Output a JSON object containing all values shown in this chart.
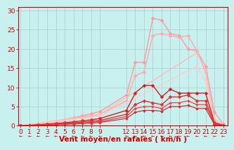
{
  "background_color": "#c8f0ee",
  "grid_color": "#aacccc",
  "xlabel": "Vent moyen/en rafales ( km/h )",
  "ylabel_ticks": [
    0,
    5,
    10,
    15,
    20,
    25,
    30
  ],
  "x_ticks": [
    0,
    1,
    2,
    3,
    4,
    5,
    6,
    7,
    8,
    9,
    12,
    13,
    14,
    15,
    16,
    17,
    18,
    19,
    20,
    21,
    22,
    23
  ],
  "xlim": [
    -0.3,
    23.5
  ],
  "ylim": [
    0,
    31
  ],
  "lines": [
    {
      "x": [
        0,
        1,
        2,
        3,
        4,
        5,
        6,
        7,
        8,
        9,
        12,
        13,
        14,
        15,
        16,
        17,
        18,
        19,
        20,
        21,
        22,
        23
      ],
      "y": [
        0,
        0.3,
        0.6,
        0.9,
        1.2,
        1.6,
        2.1,
        2.6,
        3.1,
        3.7,
        8.0,
        16.5,
        16.5,
        28.0,
        27.5,
        24.0,
        23.5,
        20.0,
        19.5,
        15.5,
        3.5,
        0.5
      ],
      "color": "#ff9999",
      "lw": 1.0,
      "marker": "D",
      "ms": 2.5
    },
    {
      "x": [
        0,
        1,
        2,
        3,
        4,
        5,
        6,
        7,
        8,
        9,
        12,
        13,
        14,
        15,
        16,
        17,
        18,
        19,
        20,
        21,
        22,
        23
      ],
      "y": [
        0,
        0.25,
        0.5,
        0.75,
        1.0,
        1.35,
        1.7,
        2.1,
        2.5,
        3.0,
        6.5,
        13.0,
        14.0,
        23.5,
        24.0,
        23.5,
        23.0,
        23.5,
        19.5,
        14.0,
        1.5,
        0.3
      ],
      "color": "#ffaaaa",
      "lw": 1.0,
      "marker": "D",
      "ms": 2.5
    },
    {
      "x": [
        0,
        9,
        20,
        21,
        22,
        23
      ],
      "y": [
        0,
        3.0,
        19.0,
        14.5,
        1.0,
        0.2
      ],
      "color": "#ffbbbb",
      "lw": 1.0,
      "marker": "D",
      "ms": 2.5
    },
    {
      "x": [
        0,
        9,
        20,
        21,
        22,
        23
      ],
      "y": [
        0,
        2.5,
        15.5,
        11.5,
        0.8,
        0.2
      ],
      "color": "#ffcccc",
      "lw": 1.0,
      "marker": "D",
      "ms": 2.5
    },
    {
      "x": [
        0,
        1,
        2,
        3,
        4,
        5,
        6,
        7,
        8,
        9,
        12,
        13,
        14,
        15,
        16,
        17,
        18,
        19,
        20,
        21,
        22,
        23
      ],
      "y": [
        0,
        0.15,
        0.3,
        0.45,
        0.6,
        0.8,
        1.05,
        1.3,
        1.55,
        1.9,
        4.0,
        8.5,
        10.5,
        10.5,
        7.5,
        9.5,
        8.5,
        8.5,
        8.5,
        8.5,
        0.8,
        0.15
      ],
      "color": "#cc2222",
      "lw": 1.0,
      "marker": "D",
      "ms": 2.5
    },
    {
      "x": [
        0,
        1,
        2,
        3,
        4,
        5,
        6,
        7,
        8,
        9,
        12,
        13,
        14,
        15,
        16,
        17,
        18,
        19,
        20,
        21,
        22,
        23
      ],
      "y": [
        0,
        0.1,
        0.2,
        0.32,
        0.45,
        0.6,
        0.78,
        0.97,
        1.16,
        1.4,
        3.0,
        5.5,
        6.5,
        6.0,
        5.5,
        7.5,
        7.5,
        8.0,
        6.5,
        6.5,
        0.5,
        0.1
      ],
      "color": "#dd3333",
      "lw": 1.0,
      "marker": "D",
      "ms": 2.5
    },
    {
      "x": [
        0,
        1,
        2,
        3,
        4,
        5,
        6,
        7,
        8,
        9,
        12,
        13,
        14,
        15,
        16,
        17,
        18,
        19,
        20,
        21,
        22,
        23
      ],
      "y": [
        0,
        0.08,
        0.16,
        0.25,
        0.35,
        0.47,
        0.6,
        0.75,
        0.9,
        1.1,
        2.4,
        4.5,
        5.0,
        5.0,
        4.5,
        6.0,
        6.0,
        6.5,
        5.5,
        5.5,
        0.4,
        0.08
      ],
      "color": "#ee4444",
      "lw": 0.9,
      "marker": "D",
      "ms": 2.0
    },
    {
      "x": [
        0,
        1,
        2,
        3,
        4,
        5,
        6,
        7,
        8,
        9,
        12,
        13,
        14,
        15,
        16,
        17,
        18,
        19,
        20,
        21,
        22,
        23
      ],
      "y": [
        0,
        0.06,
        0.12,
        0.19,
        0.27,
        0.37,
        0.47,
        0.58,
        0.7,
        0.85,
        1.9,
        3.5,
        4.0,
        4.0,
        3.8,
        5.0,
        5.0,
        5.3,
        4.5,
        4.5,
        0.3,
        0.06
      ],
      "color": "#cc3333",
      "lw": 0.9,
      "marker": "D",
      "ms": 2.0
    }
  ],
  "tick_fontsize": 6.5,
  "tick_color": "#cc0000",
  "xlabel_color": "#cc0000",
  "xlabel_fontsize": 7.5,
  "xlabel_fontweight": "bold"
}
